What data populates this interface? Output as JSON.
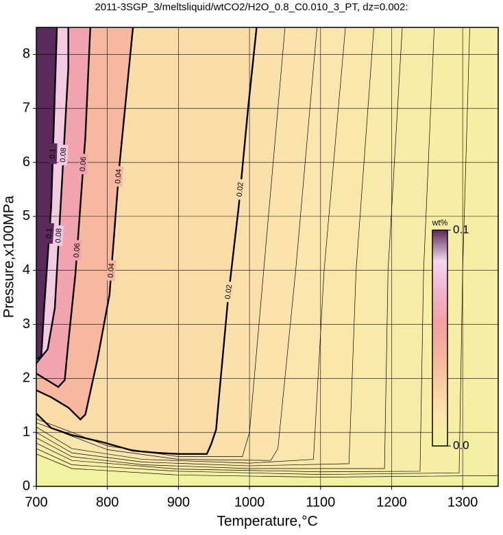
{
  "chart_data": {
    "type": "contour",
    "title": "2011-3SGP_3/meltsliquid/wtCO2/H2O_0.8_C0.010_3_PT, dz=0.002:",
    "x_label": "Temperature,°C",
    "y_label": "Pressure,x100MPa",
    "xlim": [
      700,
      1350
    ],
    "ylim": [
      0,
      8.5
    ],
    "xticks": [
      700,
      800,
      900,
      1000,
      1100,
      1200,
      1300
    ],
    "yticks": [
      0,
      1,
      2,
      3,
      4,
      5,
      6,
      7,
      8
    ],
    "grid": true,
    "line_color": "#000000",
    "colorbar": {
      "label": "wt%",
      "lim": [
        0,
        0.1
      ],
      "ticks": [
        {
          "value": 0,
          "label": "0.0"
        },
        0.1
      ],
      "colors": [
        "#f2f3a0",
        "#fbe6ad",
        "#f8cda2",
        "#f5b39e",
        "#f2a0a6",
        "#f0b4cc",
        "#f4d8f0",
        "#5a2a5a"
      ]
    },
    "contours": [
      {
        "level": 0.004,
        "x": [
          1350,
          1100,
          900,
          750,
          700
        ],
        "y": [
          0.2,
          0.17,
          0.21,
          0.33,
          0.6
        ]
      },
      {
        "level": 0.006,
        "x": [
          1310,
          1300,
          1295,
          1100,
          900,
          750,
          700
        ],
        "y": [
          8.5,
          4,
          0.25,
          0.22,
          0.28,
          0.4,
          0.7
        ]
      },
      {
        "level": 0.008,
        "x": [
          1260,
          1245,
          1240,
          1100,
          900,
          750,
          700
        ],
        "y": [
          8.5,
          4,
          0.28,
          0.27,
          0.32,
          0.48,
          0.8
        ]
      },
      {
        "level": 0.01,
        "x": [
          1215,
          1195,
          1190,
          1000,
          850,
          750,
          700
        ],
        "y": [
          8.5,
          4,
          0.33,
          0.33,
          0.4,
          0.55,
          0.9
        ]
      },
      {
        "level": 0.012,
        "x": [
          1175,
          1150,
          1140,
          1000,
          850,
          750,
          700
        ],
        "y": [
          8.5,
          4,
          0.42,
          0.38,
          0.45,
          0.62,
          1.0
        ]
      },
      {
        "level": 0.014,
        "x": [
          1135,
          1105,
          1090,
          1000,
          850,
          750,
          700
        ],
        "y": [
          8.5,
          4,
          0.5,
          0.43,
          0.5,
          0.7,
          1.1
        ]
      },
      {
        "level": 0.016,
        "x": [
          1095,
          1065,
          1040,
          1030,
          900,
          800,
          700
        ],
        "y": [
          8.5,
          4,
          0.7,
          0.48,
          0.5,
          0.68,
          1.18
        ]
      },
      {
        "level": 0.018,
        "x": [
          1050,
          1020,
          1000,
          990,
          900,
          800,
          700
        ],
        "y": [
          8.5,
          4,
          1,
          0.55,
          0.55,
          0.75,
          1.25
        ]
      }
    ],
    "labeled_contours": [
      {
        "level": 0.02,
        "x": [
          1010,
          998,
          985,
          970,
          956,
          953,
          946,
          940,
          900,
          870,
          836,
          793,
          750,
          721,
          700
        ],
        "y": [
          8.5,
          7,
          5.2,
          3.5,
          1.5,
          1.05,
          0.78,
          0.6,
          0.6,
          0.62,
          0.66,
          0.82,
          0.95,
          1.08,
          1.35
        ]
      },
      {
        "level": 0.04,
        "x": [
          836,
          817,
          803,
          786,
          769,
          762,
          745,
          721,
          700
        ],
        "y": [
          8.5,
          5.95,
          3.55,
          2.35,
          1.33,
          1.24,
          1.46,
          1.65,
          1.78
        ]
      },
      {
        "level": 0.06,
        "x": [
          776,
          769,
          755,
          745,
          740,
          731,
          700
        ],
        "y": [
          8.5,
          6.47,
          3.93,
          2.66,
          1.97,
          1.84,
          2.09
        ]
      },
      {
        "level": 0.08,
        "x": [
          745,
          745,
          737,
          726,
          716,
          700
        ],
        "y": [
          8.5,
          7.74,
          5.84,
          3.3,
          2.54,
          2.28
        ]
      },
      {
        "level": 0.1,
        "x": [
          729,
          721,
          711,
          707,
          700
        ],
        "y": [
          8.5,
          5.2,
          3.3,
          2.41,
          2.35
        ]
      }
    ]
  }
}
